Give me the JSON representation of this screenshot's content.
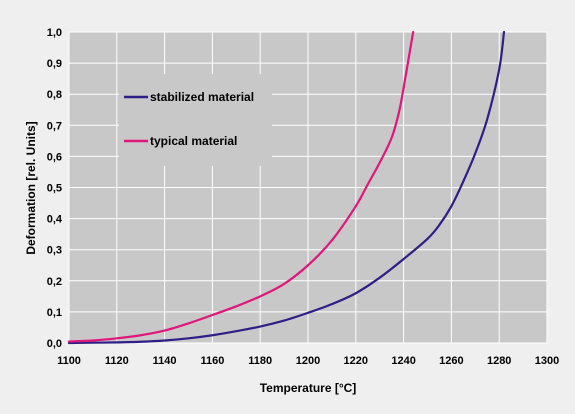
{
  "chart_data": {
    "type": "line",
    "title": "",
    "xlabel": "Temperature [°C]",
    "ylabel": "Deformation [rel. Units]",
    "xlim": [
      1100,
      1300
    ],
    "ylim": [
      0,
      1.0
    ],
    "x_ticks": [
      1100,
      1120,
      1140,
      1160,
      1180,
      1200,
      1220,
      1240,
      1260,
      1280,
      1300
    ],
    "x_tick_labels": [
      "1100",
      "1120",
      "1140",
      "1160",
      "1180",
      "1200",
      "1220",
      "1240",
      "1260",
      "1280",
      "1300"
    ],
    "y_ticks": [
      0,
      0.1,
      0.2,
      0.3,
      0.4,
      0.5,
      0.6,
      0.7,
      0.8,
      0.9,
      1.0
    ],
    "y_tick_labels": [
      "0,0",
      "0,1",
      "0,2",
      "0,3",
      "0,4",
      "0,5",
      "0,6",
      "0,7",
      "0,8",
      "0,9",
      "1,0"
    ],
    "grid": true,
    "legend_position": "upper-left inside",
    "series": [
      {
        "name": "stabilized material",
        "color": "#2e1f86",
        "x": [
          1100,
          1110,
          1120,
          1130,
          1140,
          1150,
          1160,
          1170,
          1180,
          1190,
          1200,
          1210,
          1220,
          1230,
          1240,
          1250,
          1255,
          1260,
          1265,
          1270,
          1275,
          1280,
          1282
        ],
        "y": [
          0.0,
          0.001,
          0.002,
          0.004,
          0.008,
          0.015,
          0.025,
          0.038,
          0.053,
          0.072,
          0.097,
          0.125,
          0.16,
          0.21,
          0.27,
          0.335,
          0.38,
          0.44,
          0.52,
          0.61,
          0.72,
          0.88,
          1.0
        ]
      },
      {
        "name": "typical material",
        "color": "#e0177a",
        "x": [
          1100,
          1110,
          1120,
          1130,
          1140,
          1150,
          1160,
          1170,
          1180,
          1190,
          1200,
          1210,
          1220,
          1225,
          1230,
          1235,
          1238,
          1240,
          1242,
          1244
        ],
        "y": [
          0.005,
          0.008,
          0.015,
          0.025,
          0.04,
          0.063,
          0.09,
          0.118,
          0.15,
          0.19,
          0.25,
          0.33,
          0.44,
          0.51,
          0.58,
          0.66,
          0.74,
          0.82,
          0.91,
          1.0
        ]
      }
    ]
  }
}
